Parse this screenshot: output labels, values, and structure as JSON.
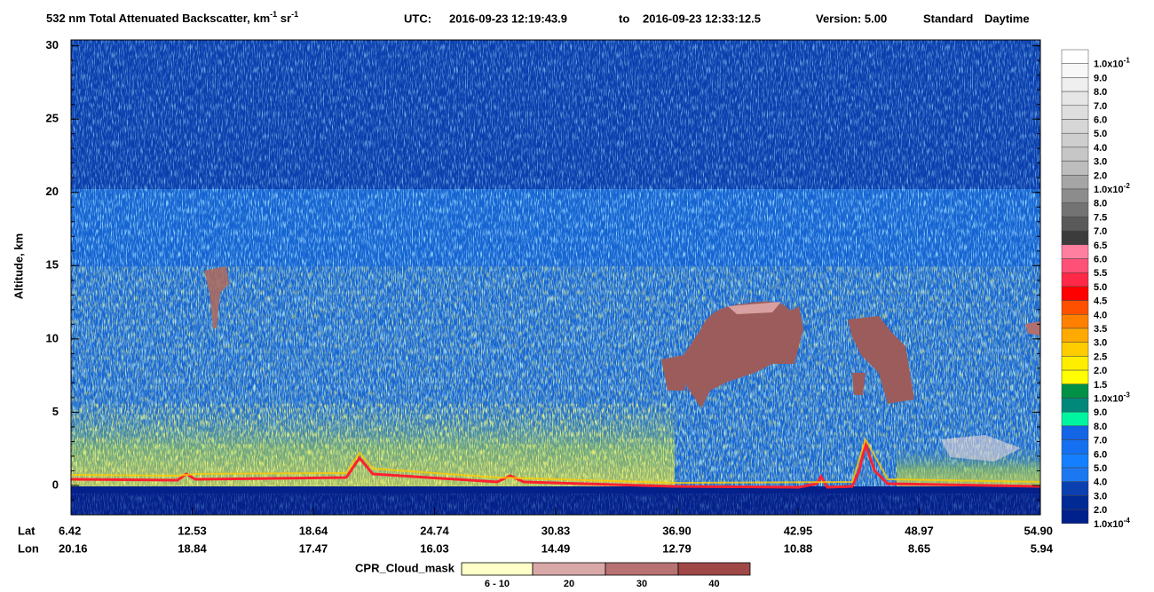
{
  "header": {
    "title_parts": [
      "532 nm Total Attenuated Backscatter, km",
      "-1",
      " sr",
      "-1"
    ],
    "utc_label": "UTC:",
    "start": "2016-09-23 12:19:43.9",
    "to": "to",
    "end": "2016-09-23 12:33:12.5",
    "version": "Version: 5.00",
    "product": "Standard",
    "mode": "Daytime"
  },
  "plot": {
    "ylabel": "Altitude, km",
    "ylim": [
      -2,
      30.4
    ],
    "yticks": [
      0,
      5,
      10,
      15,
      20,
      25,
      30
    ],
    "lat_label": "Lat",
    "lon_label": "Lon",
    "lat": [
      "6.42",
      "12.53",
      "18.64",
      "24.74",
      "30.83",
      "36.90",
      "42.95",
      "48.97",
      "54.90"
    ],
    "lon": [
      "20.16",
      "18.84",
      "17.47",
      "16.03",
      "14.49",
      "12.79",
      "10.88",
      "8.65",
      "5.94"
    ]
  },
  "colorbar": [
    {
      "label": "1.0x10",
      "sup": "-1",
      "color": "#ffffff"
    },
    {
      "label": "9.0",
      "color": "#f7f7f7"
    },
    {
      "label": "8.0",
      "color": "#efefef"
    },
    {
      "label": "7.0",
      "color": "#e6e6e6"
    },
    {
      "label": "6.0",
      "color": "#dedede"
    },
    {
      "label": "5.0",
      "color": "#d6d6d6"
    },
    {
      "label": "4.0",
      "color": "#cecece"
    },
    {
      "label": "3.0",
      "color": "#c6c6c6"
    },
    {
      "label": "2.0",
      "color": "#bdbdbd"
    },
    {
      "label": "1.0x10",
      "sup": "-2",
      "color": "#a5a5a5"
    },
    {
      "label": "8.0",
      "color": "#8c8c8c"
    },
    {
      "label": "7.5",
      "color": "#737373"
    },
    {
      "label": "7.0",
      "color": "#5a5a5a"
    },
    {
      "label": "6.5",
      "color": "#3c3c3c"
    },
    {
      "label": "6.0",
      "color": "#ff7fa0"
    },
    {
      "label": "5.5",
      "color": "#ff5078"
    },
    {
      "label": "5.0",
      "color": "#ff2846"
    },
    {
      "label": "4.5",
      "color": "#ff0000"
    },
    {
      "label": "4.0",
      "color": "#ff5000"
    },
    {
      "label": "3.5",
      "color": "#ff8000"
    },
    {
      "label": "3.0",
      "color": "#ffaa00"
    },
    {
      "label": "2.5",
      "color": "#ffcc00"
    },
    {
      "label": "2.0",
      "color": "#ffee00"
    },
    {
      "label": "1.5",
      "color": "#ffff00"
    },
    {
      "label": "1.0x10",
      "sup": "-3",
      "color": "#009046"
    },
    {
      "label": "9.0",
      "color": "#00887a"
    },
    {
      "label": "8.0",
      "color": "#00f5a0"
    },
    {
      "label": "7.0",
      "color": "#1464e6"
    },
    {
      "label": "6.0",
      "color": "#1470f0"
    },
    {
      "label": "5.0",
      "color": "#1480ff"
    },
    {
      "label": "4.0",
      "color": "#1c78f0"
    },
    {
      "label": "3.0",
      "color": "#0a40b0"
    },
    {
      "label": "2.0",
      "color": "#002a96"
    },
    {
      "label": "1.0x10",
      "sup": "-4",
      "color": "#00208c"
    }
  ],
  "cloud_mask": {
    "title": "CPR_Cloud_mask",
    "items": [
      {
        "label": "6 - 10",
        "color": "#ffffc8"
      },
      {
        "label": "20",
        "color": "#d8a8a8"
      },
      {
        "label": "30",
        "color": "#b87272"
      },
      {
        "label": "40",
        "color": "#a04848"
      }
    ]
  }
}
